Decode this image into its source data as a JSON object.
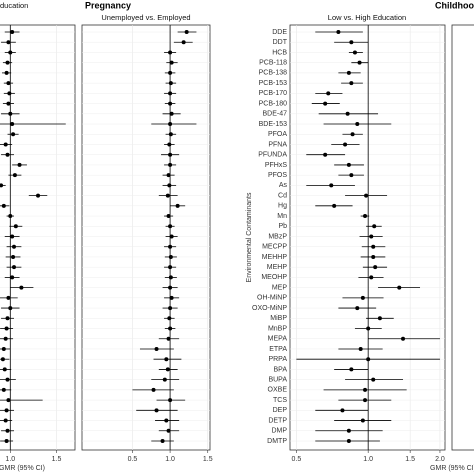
{
  "groups": [
    {
      "title": "Pregnancy",
      "xlabel": "GMR (95% CI)"
    },
    {
      "title": "Childhoo",
      "xlabel": "GMR (95% CI)"
    }
  ],
  "chart_data": [
    {
      "type": "forest",
      "title": "ducation",
      "log": false,
      "xlim": [
        0.867,
        1.7
      ],
      "xticks": [
        {
          "value": 1,
          "label": "1.0"
        },
        1.5
      ],
      "refline": 1,
      "grid": true,
      "values": [
        1.02,
        0.98,
        1.0,
        0.97,
        0.96,
        0.98,
        0.99,
        0.98,
        1.0,
        1.02,
        1.03,
        0.95,
        0.97,
        1.1,
        1.05,
        0.9,
        1.3,
        0.93,
        1.0,
        1.06,
        1.02,
        1.04,
        1.03,
        1.04,
        1.02,
        1.12,
        0.98,
        1.0,
        0.97,
        0.96,
        0.95,
        0.93,
        0.92,
        0.94,
        0.97,
        0.93,
        0.98,
        0.96,
        0.95,
        0.97,
        0.96
      ],
      "lo": [
        0.94,
        0.9,
        0.94,
        0.92,
        0.91,
        0.93,
        0.93,
        0.92,
        0.9,
        0.88,
        0.97,
        0.88,
        0.9,
        1.02,
        0.98,
        0.85,
        1.2,
        0.87,
        0.96,
        0.99,
        0.94,
        0.96,
        0.95,
        0.96,
        0.94,
        1.0,
        0.88,
        0.9,
        0.9,
        0.89,
        0.87,
        0.86,
        0.85,
        0.87,
        0.88,
        0.85,
        0.88,
        0.88,
        0.88,
        0.9,
        0.89
      ],
      "hi": [
        1.1,
        1.06,
        1.06,
        1.02,
        1.01,
        1.03,
        1.05,
        1.04,
        1.1,
        1.6,
        1.09,
        1.02,
        1.04,
        1.18,
        1.12,
        0.95,
        1.4,
        0.99,
        1.04,
        1.13,
        1.1,
        1.12,
        1.11,
        1.12,
        1.1,
        1.25,
        1.08,
        1.1,
        1.04,
        1.03,
        1.03,
        1.0,
        0.99,
        1.01,
        1.06,
        1.01,
        1.35,
        1.04,
        1.02,
        1.04,
        1.03
      ]
    },
    {
      "type": "forest",
      "title": "Unemployed vs. Employed",
      "log": false,
      "xlim": [
        -0.17,
        1.53
      ],
      "xticks": [
        0.5,
        {
          "value": 1,
          "label": "1.0"
        },
        1.5
      ],
      "refline": 1,
      "grid": true,
      "values": [
        1.22,
        1.18,
        1.0,
        1.02,
        1.0,
        1.01,
        1.0,
        1.0,
        1.02,
        1.0,
        1.01,
        0.99,
        1.0,
        1.0,
        0.98,
        0.99,
        0.97,
        1.1,
        0.98,
        1.0,
        1.02,
        1.0,
        1.01,
        1.0,
        1.01,
        1.0,
        1.02,
        1.0,
        0.99,
        1.0,
        0.98,
        0.82,
        0.95,
        0.97,
        0.93,
        0.78,
        1.0,
        0.82,
        0.95,
        0.98,
        0.9
      ],
      "lo": [
        1.1,
        1.05,
        0.92,
        0.95,
        0.93,
        0.94,
        0.92,
        0.93,
        0.9,
        0.75,
        0.94,
        0.92,
        0.88,
        0.92,
        0.9,
        0.9,
        0.85,
        1.0,
        0.92,
        0.94,
        0.94,
        0.92,
        0.93,
        0.92,
        0.93,
        0.9,
        0.92,
        0.9,
        0.92,
        0.93,
        0.85,
        0.6,
        0.78,
        0.85,
        0.75,
        0.5,
        0.82,
        0.55,
        0.8,
        0.85,
        0.75
      ],
      "hi": [
        1.35,
        1.3,
        1.08,
        1.1,
        1.07,
        1.08,
        1.08,
        1.07,
        1.14,
        1.35,
        1.08,
        1.06,
        1.12,
        1.08,
        1.06,
        1.08,
        1.1,
        1.2,
        1.04,
        1.06,
        1.1,
        1.08,
        1.09,
        1.08,
        1.09,
        1.1,
        1.12,
        1.1,
        1.06,
        1.07,
        1.12,
        1.05,
        1.15,
        1.1,
        1.12,
        1.05,
        1.2,
        1.1,
        1.12,
        1.12,
        1.05
      ]
    },
    {
      "type": "forest",
      "title": "Low vs. High Education",
      "ylabel": "Environmental Contaminants",
      "log": true,
      "xlim": [
        0.47,
        2.1
      ],
      "xticks": [
        0.5,
        {
          "value": 1,
          "label": "1.0"
        },
        1.5,
        {
          "value": 2,
          "label": "2.0"
        }
      ],
      "refline": 1,
      "grid": true,
      "categories": [
        "DDE",
        "DDT",
        "HCB",
        "PCB-118",
        "PCB-138",
        "PCB-153",
        "PCB-170",
        "PCB-180",
        "BDE-47",
        "BDE-153",
        "PFOA",
        "PFNA",
        "PFUNDA",
        "PFHxS",
        "PFOS",
        "As",
        "Cd",
        "Hg",
        "Mn",
        "Pb",
        "MBzP",
        "MECPP",
        "MEHHP",
        "MEHP",
        "MEOHP",
        "MEP",
        "OH-MiNP",
        "OXO-MiNP",
        "MiBP",
        "MnBP",
        "MEPA",
        "ETPA",
        "PRPA",
        "BPA",
        "BUPA",
        "OXBE",
        "TCS",
        "DEP",
        "DETP",
        "DMP",
        "DMTP"
      ],
      "values": [
        0.75,
        0.85,
        0.88,
        0.92,
        0.83,
        0.85,
        0.68,
        0.66,
        0.82,
        0.9,
        0.86,
        0.8,
        0.66,
        0.83,
        0.85,
        0.7,
        0.98,
        0.72,
        0.97,
        1.06,
        1.03,
        1.05,
        1.05,
        1.07,
        1.03,
        1.35,
        0.95,
        0.9,
        1.12,
        1.0,
        1.4,
        0.93,
        1.0,
        0.85,
        1.05,
        0.97,
        0.97,
        0.78,
        0.95,
        0.83,
        0.83
      ],
      "lo": [
        0.6,
        0.72,
        0.83,
        0.85,
        0.75,
        0.77,
        0.6,
        0.58,
        0.62,
        0.65,
        0.78,
        0.7,
        0.55,
        0.72,
        0.75,
        0.55,
        0.8,
        0.6,
        0.93,
        0.98,
        0.92,
        0.94,
        0.93,
        0.95,
        0.91,
        1.1,
        0.78,
        0.75,
        0.98,
        0.88,
        1.0,
        0.75,
        0.5,
        0.72,
        0.8,
        0.65,
        0.75,
        0.6,
        0.72,
        0.6,
        0.6
      ],
      "hi": [
        0.95,
        1.0,
        0.95,
        1.0,
        0.93,
        0.95,
        0.78,
        0.76,
        1.1,
        1.25,
        0.95,
        0.92,
        0.8,
        0.96,
        0.96,
        0.88,
        1.2,
        0.86,
        1.01,
        1.14,
        1.15,
        1.18,
        1.18,
        1.2,
        1.16,
        1.65,
        1.16,
        1.08,
        1.28,
        1.14,
        2.0,
        1.15,
        2.0,
        1.0,
        1.4,
        1.45,
        1.25,
        1.0,
        1.25,
        1.15,
        1.12
      ]
    }
  ]
}
